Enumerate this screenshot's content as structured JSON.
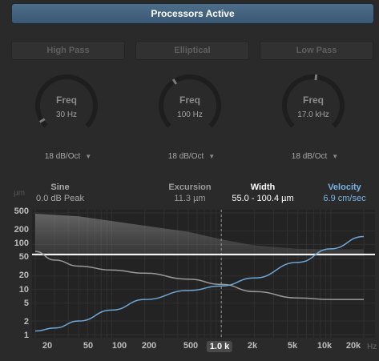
{
  "header": {
    "active_label": "Processors Active"
  },
  "filter_types": [
    {
      "label": "High Pass"
    },
    {
      "label": "Elliptical"
    },
    {
      "label": "Low Pass"
    }
  ],
  "knobs": [
    {
      "name": "Freq",
      "value": "30 Hz",
      "slope": "18 dB/Oct",
      "level": 0.05
    },
    {
      "name": "Freq",
      "value": "100 Hz",
      "slope": "18 dB/Oct",
      "level": 0.38
    },
    {
      "name": "Freq",
      "value": "17.0 kHz",
      "slope": "18 dB/Oct",
      "level": 0.52
    }
  ],
  "stats": {
    "unit": "µm",
    "sine": {
      "label": "Sine",
      "value": "0.0 dB Peak"
    },
    "excursion": {
      "label": "Excursion",
      "value": "11.3 µm"
    },
    "width": {
      "label": "Width",
      "value": "55.0 - 100.4 µm"
    },
    "velocity": {
      "label": "Velocity",
      "value": "6.9 cm/sec"
    }
  },
  "axes": {
    "y_ticks": [
      "500",
      "200",
      "100",
      "50",
      "20",
      "10",
      "5",
      "2",
      "1"
    ],
    "x_ticks": [
      "20",
      "50",
      "100",
      "200",
      "500",
      "1.0 k",
      "2k",
      "5k",
      "10k",
      "20k"
    ],
    "x_unit": "Hz",
    "selected_x": "1.0 k"
  },
  "chart_data": {
    "type": "line",
    "x_scale": "log",
    "y_scale": "log",
    "xlim": [
      20,
      20000
    ],
    "ylim": [
      1,
      500
    ],
    "cursor_x": 1000,
    "width_band": {
      "low": 55.0,
      "high": 100.4
    },
    "reference_line": 60,
    "series": [
      {
        "x": [
          20,
          30,
          50,
          100,
          200,
          500,
          1000,
          2000,
          5000,
          10000,
          20000
        ],
        "values": [
          1.2,
          1.4,
          2.0,
          3.5,
          6.0,
          9.5,
          12,
          18,
          40,
          80,
          150
        ]
      },
      {
        "x": [
          20,
          30,
          50,
          100,
          200,
          500,
          1000,
          2000,
          5000,
          10000,
          20000
        ],
        "values": [
          70,
          45,
          33,
          27,
          23,
          17,
          13,
          9,
          6.5,
          6,
          6
        ]
      }
    ],
    "colors": {
      "rising": "#6ea6d6",
      "falling": "#9a9a9a",
      "reference": "#ffffff"
    }
  },
  "colors": {
    "accent": "#4d6e8a",
    "velocity": "#7ab3e6"
  }
}
